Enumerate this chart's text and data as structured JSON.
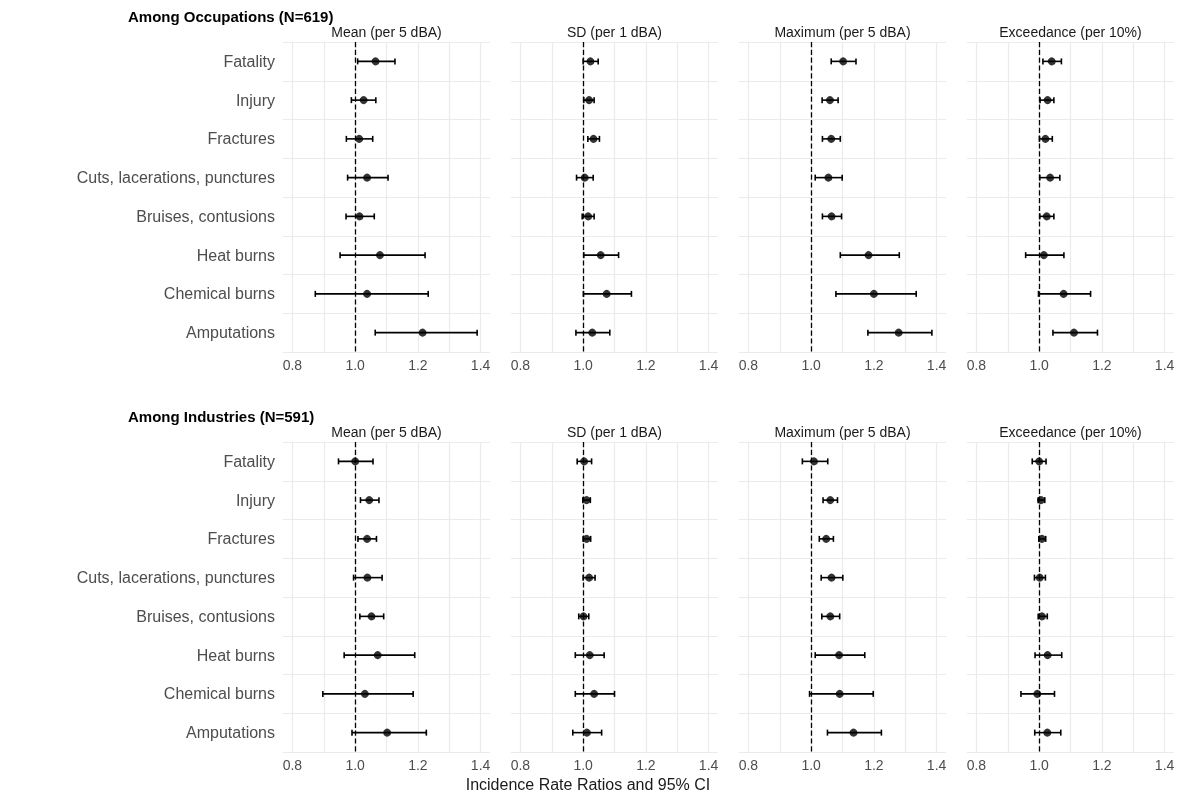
{
  "chart_data": [
    {
      "type": "scatter",
      "orientation": "horizontal",
      "title": "Among Occupations (N=619)",
      "subtitle": "Mean (per 5 dBA)",
      "categories": [
        "Fatality",
        "Injury",
        "Fractures",
        "Cuts, lacerations, punctures",
        "Bruises, contusions",
        "Heat burns",
        "Chemical burns",
        "Amputations"
      ],
      "color": "#000000",
      "marker": "circle",
      "grid": true,
      "values": [
        1.065,
        1.027,
        1.013,
        1.038,
        1.014,
        1.079,
        1.038,
        1.215
      ],
      "errors": [
        [
          1.008,
          1.127
        ],
        [
          0.988,
          1.066
        ],
        [
          0.972,
          1.056
        ],
        [
          0.976,
          1.105
        ],
        [
          0.971,
          1.061
        ],
        [
          0.952,
          1.223
        ],
        [
          0.873,
          1.233
        ],
        [
          1.064,
          1.389
        ]
      ],
      "xlim": [
        0.77,
        1.43
      ],
      "xticks": [
        0.8,
        {
          "value": 0.9,
          "label": null
        },
        {
          "value": 1,
          "label": "1.0"
        },
        {
          "value": 1.1,
          "label": null
        },
        1.2,
        {
          "value": 1.3,
          "label": null
        },
        1.4
      ],
      "ref_lines": [
        {
          "axis": "x",
          "value": 1,
          "line_style": "dashed",
          "color": "#000000"
        }
      ]
    },
    {
      "type": "scatter",
      "orientation": "horizontal",
      "subtitle": "SD (per 1 dBA)",
      "categories": [
        null,
        null,
        null,
        null,
        null,
        null,
        null,
        null
      ],
      "color": "#000000",
      "marker": "circle",
      "grid": true,
      "tick_labels": "x",
      "values": [
        1.023,
        1.019,
        1.033,
        1.005,
        1.016,
        1.056,
        1.075,
        1.029
      ],
      "errors": [
        [
          1.0,
          1.048
        ],
        [
          1.002,
          1.035
        ],
        [
          1.015,
          1.052
        ],
        [
          0.979,
          1.032
        ],
        [
          0.997,
          1.035
        ],
        [
          1.002,
          1.113
        ],
        [
          1.001,
          1.154
        ],
        [
          0.977,
          1.085
        ]
      ],
      "xlim": [
        0.77,
        1.43
      ],
      "xticks": [
        0.8,
        {
          "value": 0.9,
          "label": null
        },
        {
          "value": 1,
          "label": "1.0"
        },
        {
          "value": 1.1,
          "label": null
        },
        1.2,
        {
          "value": 1.3,
          "label": null
        },
        1.4
      ],
      "ref_lines": [
        {
          "axis": "x",
          "value": 1,
          "line_style": "dashed",
          "color": "#000000"
        }
      ]
    },
    {
      "type": "scatter",
      "orientation": "horizontal",
      "subtitle": "Maximum (per 5 dBA)",
      "categories": [
        null,
        null,
        null,
        null,
        null,
        null,
        null,
        null
      ],
      "color": "#000000",
      "marker": "circle",
      "grid": true,
      "tick_labels": "x",
      "values": [
        1.102,
        1.06,
        1.064,
        1.055,
        1.065,
        1.183,
        1.2,
        1.279
      ],
      "errors": [
        [
          1.064,
          1.143
        ],
        [
          1.035,
          1.086
        ],
        [
          1.036,
          1.093
        ],
        [
          1.013,
          1.099
        ],
        [
          1.036,
          1.097
        ],
        [
          1.093,
          1.281
        ],
        [
          1.079,
          1.335
        ],
        [
          1.181,
          1.385
        ]
      ],
      "xlim": [
        0.77,
        1.43
      ],
      "xticks": [
        0.8,
        {
          "value": 0.9,
          "label": null
        },
        {
          "value": 1,
          "label": "1.0"
        },
        {
          "value": 1.1,
          "label": null
        },
        1.2,
        {
          "value": 1.3,
          "label": null
        },
        1.4
      ],
      "ref_lines": [
        {
          "axis": "x",
          "value": 1,
          "line_style": "dashed",
          "color": "#000000"
        }
      ]
    },
    {
      "type": "scatter",
      "orientation": "horizontal",
      "subtitle": "Exceedance (per 10%)",
      "categories": [
        null,
        null,
        null,
        null,
        null,
        null,
        null,
        null
      ],
      "color": "#000000",
      "marker": "circle",
      "grid": true,
      "tick_labels": "x",
      "values": [
        1.04,
        1.027,
        1.02,
        1.035,
        1.024,
        1.015,
        1.078,
        1.111
      ],
      "errors": [
        [
          1.012,
          1.071
        ],
        [
          1.003,
          1.047
        ],
        [
          1.001,
          1.042
        ],
        [
          1.002,
          1.066
        ],
        [
          1.002,
          1.047
        ],
        [
          0.957,
          1.079
        ],
        [
          0.998,
          1.164
        ],
        [
          1.044,
          1.186
        ]
      ],
      "xlim": [
        0.77,
        1.43
      ],
      "xticks": [
        0.8,
        {
          "value": 0.9,
          "label": null
        },
        {
          "value": 1,
          "label": "1.0"
        },
        {
          "value": 1.1,
          "label": null
        },
        1.2,
        {
          "value": 1.3,
          "label": null
        },
        1.4
      ],
      "ref_lines": [
        {
          "axis": "x",
          "value": 1,
          "line_style": "dashed",
          "color": "#000000"
        }
      ]
    },
    {
      "type": "scatter",
      "orientation": "horizontal",
      "title": "Among Industries (N=591)",
      "subtitle": "Mean (per 5 dBA)",
      "categories": [
        "Fatality",
        "Injury",
        "Fractures",
        "Cuts, lacerations, punctures",
        "Bruises, contusions",
        "Heat burns",
        "Chemical burns",
        "Amputations"
      ],
      "color": "#000000",
      "marker": "circle",
      "grid": true,
      "values": [
        1.0,
        1.045,
        1.038,
        1.039,
        1.052,
        1.072,
        1.031,
        1.102
      ],
      "errors": [
        [
          0.947,
          1.057
        ],
        [
          1.017,
          1.076
        ],
        [
          1.009,
          1.068
        ],
        [
          0.995,
          1.086
        ],
        [
          1.015,
          1.091
        ],
        [
          0.965,
          1.19
        ],
        [
          0.897,
          1.185
        ],
        [
          0.99,
          1.227
        ]
      ],
      "xlim": [
        0.77,
        1.43
      ],
      "xticks": [
        0.8,
        {
          "value": 0.9,
          "label": null
        },
        {
          "value": 1,
          "label": "1.0"
        },
        {
          "value": 1.1,
          "label": null
        },
        1.2,
        {
          "value": 1.3,
          "label": null
        },
        1.4
      ],
      "ref_lines": [
        {
          "axis": "x",
          "value": 1,
          "line_style": "dashed",
          "color": "#000000"
        }
      ]
    },
    {
      "type": "scatter",
      "orientation": "horizontal",
      "subtitle": "SD (per 1 dBA)",
      "xlabel": "Incidence Rate Ratios and 95% CI",
      "categories": [
        null,
        null,
        null,
        null,
        null,
        null,
        null,
        null
      ],
      "color": "#000000",
      "marker": "circle",
      "grid": true,
      "tick_labels": "x",
      "values": [
        1.003,
        1.011,
        1.011,
        1.019,
        1.001,
        1.021,
        1.035,
        1.012
      ],
      "errors": [
        [
          0.981,
          1.027
        ],
        [
          0.999,
          1.023
        ],
        [
          1.0,
          1.024
        ],
        [
          1.0,
          1.038
        ],
        [
          0.986,
          1.018
        ],
        [
          0.975,
          1.067
        ],
        [
          0.975,
          1.1
        ],
        [
          0.967,
          1.059
        ]
      ],
      "xlim": [
        0.77,
        1.43
      ],
      "xticks": [
        0.8,
        {
          "value": 0.9,
          "label": null
        },
        {
          "value": 1,
          "label": "1.0"
        },
        {
          "value": 1.1,
          "label": null
        },
        1.2,
        {
          "value": 1.3,
          "label": null
        },
        1.4
      ],
      "ref_lines": [
        {
          "axis": "x",
          "value": 1,
          "line_style": "dashed",
          "color": "#000000"
        }
      ]
    },
    {
      "type": "scatter",
      "orientation": "horizontal",
      "subtitle": "Maximum (per 5 dBA)",
      "categories": [
        null,
        null,
        null,
        null,
        null,
        null,
        null,
        null
      ],
      "color": "#000000",
      "marker": "circle",
      "grid": true,
      "tick_labels": "x",
      "values": [
        1.009,
        1.061,
        1.048,
        1.065,
        1.061,
        1.089,
        1.091,
        1.135
      ],
      "errors": [
        [
          0.972,
          1.053
        ],
        [
          1.038,
          1.084
        ],
        [
          1.026,
          1.071
        ],
        [
          1.032,
          1.101
        ],
        [
          1.034,
          1.091
        ],
        [
          1.013,
          1.171
        ],
        [
          0.995,
          1.198
        ],
        [
          1.052,
          1.224
        ]
      ],
      "xlim": [
        0.77,
        1.43
      ],
      "xticks": [
        0.8,
        {
          "value": 0.9,
          "label": null
        },
        {
          "value": 1,
          "label": "1.0"
        },
        {
          "value": 1.1,
          "label": null
        },
        1.2,
        {
          "value": 1.3,
          "label": null
        },
        1.4
      ],
      "ref_lines": [
        {
          "axis": "x",
          "value": 1,
          "line_style": "dashed",
          "color": "#000000"
        }
      ]
    },
    {
      "type": "scatter",
      "orientation": "horizontal",
      "subtitle": "Exceedance (per 10%)",
      "categories": [
        null,
        null,
        null,
        null,
        null,
        null,
        null,
        null
      ],
      "color": "#000000",
      "marker": "circle",
      "grid": true,
      "tick_labels": "x",
      "values": [
        1.0,
        1.006,
        1.009,
        1.002,
        1.009,
        1.027,
        0.994,
        1.026
      ],
      "errors": [
        [
          0.978,
          1.022
        ],
        [
          0.997,
          1.018
        ],
        [
          0.999,
          1.021
        ],
        [
          0.985,
          1.02
        ],
        [
          0.997,
          1.026
        ],
        [
          0.987,
          1.072
        ],
        [
          0.942,
          1.049
        ],
        [
          0.986,
          1.069
        ]
      ],
      "xlim": [
        0.77,
        1.43
      ],
      "xticks": [
        0.8,
        {
          "value": 0.9,
          "label": null
        },
        {
          "value": 1,
          "label": "1.0"
        },
        {
          "value": 1.1,
          "label": null
        },
        1.2,
        {
          "value": 1.3,
          "label": null
        },
        1.4
      ],
      "ref_lines": [
        {
          "axis": "x",
          "value": 1,
          "line_style": "dashed",
          "color": "#000000"
        }
      ]
    }
  ]
}
